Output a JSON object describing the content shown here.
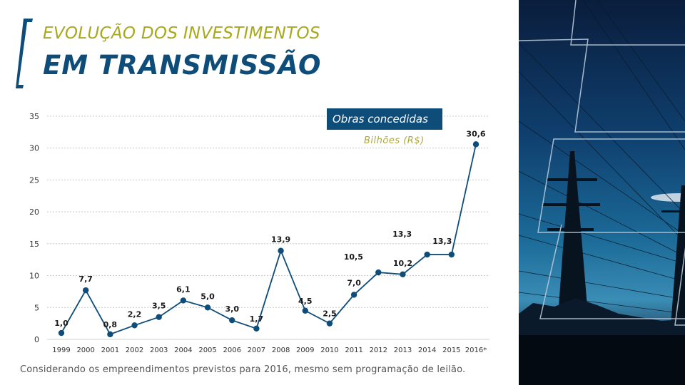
{
  "header": {
    "title_line1": "EVOLUÇÃO DOS INVESTIMENTOS",
    "title_line2": "EM TRANSMISSÃO"
  },
  "legend": {
    "series_label": "Obras concedidas",
    "unit_label": "Bilhões (R$)"
  },
  "footnote": "Considerando os empreendimentos previstos para 2016, mesmo sem programação de leilão.",
  "colors": {
    "brand_blue": "#0e4d7a",
    "title_gold": "#a8a81e",
    "unit_gold": "#b0a83a",
    "grid": "#c8c8c8"
  },
  "chart_data": {
    "type": "line",
    "title": "Evolução dos investimentos em transmissão",
    "xlabel": "",
    "ylabel": "Bilhões (R$)",
    "categories": [
      "1999",
      "2000",
      "2001",
      "2002",
      "2003",
      "2004",
      "2005",
      "2006",
      "2007",
      "2008",
      "2009",
      "2010",
      "2011",
      "2012",
      "2013",
      "2014",
      "2015",
      "2016*"
    ],
    "series": [
      {
        "name": "Obras concedidas",
        "values": [
          1.0,
          7.7,
          0.8,
          2.2,
          3.5,
          6.1,
          5.0,
          3.0,
          1.7,
          13.9,
          4.5,
          2.5,
          7.0,
          10.5,
          10.2,
          13.3,
          13.3,
          30.6
        ],
        "data_labels": [
          "1,0",
          "7,7",
          "0,8",
          "2,2",
          "3,5",
          "6,1",
          "5,0",
          "3,0",
          "1,7",
          "13,9",
          "4,5",
          "2,5",
          "7,0",
          "10,5",
          "10,2",
          "13,3",
          "13,3",
          "30,6"
        ]
      }
    ],
    "yticks": [
      0,
      5,
      10,
      15,
      20,
      25,
      30,
      35
    ],
    "ylim": [
      0,
      35
    ],
    "grid": true,
    "legend_position": "top-right"
  }
}
